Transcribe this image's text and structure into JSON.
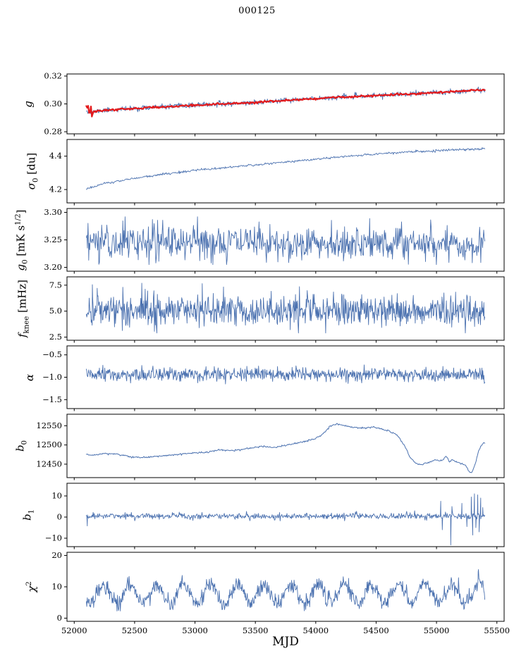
{
  "chart_data": {
    "type": "line",
    "title": "000125",
    "xlabel": "MJD",
    "xlim": [
      51940,
      55560
    ],
    "xticks": [
      52000,
      52500,
      53000,
      53500,
      54000,
      54500,
      55000,
      55500
    ],
    "xtick_labels": [
      "52000",
      "52500",
      "53000",
      "53500",
      "54000",
      "54500",
      "55000",
      "55500"
    ],
    "data_x_range": [
      52100,
      55400
    ],
    "colors": {
      "line": "#4c72b0",
      "overlay": "#e41a1c",
      "axis": "#000000",
      "background": "#ffffff"
    },
    "panels": [
      {
        "id": "g",
        "ylabel": "g",
        "ylabel_html": "<i>g</i>",
        "ylim": [
          0.2785,
          0.3215
        ],
        "yticks": [
          0.28,
          0.3,
          0.32
        ],
        "ytick_labels": [
          "0.28",
          "0.30",
          "0.32"
        ],
        "series": [
          {
            "name": "g-noisy",
            "color": "#4c72b0",
            "width": 0.9,
            "n": 800,
            "seed": 11,
            "noise_std": 0.0009,
            "trend_x": [
              52100,
              52140,
              52200,
              52350,
              52600,
              52900,
              53200,
              53500,
              53800,
              54100,
              54400,
              54700,
              55000,
              55200,
              55400
            ],
            "trend_y": [
              0.2958,
              0.2936,
              0.295,
              0.296,
              0.2972,
              0.2986,
              0.2999,
              0.301,
              0.3028,
              0.3044,
              0.3056,
              0.3068,
              0.308,
              0.3092,
              0.3101
            ]
          },
          {
            "name": "g-smooth-overlay",
            "color": "#e41a1c",
            "width": 2.2,
            "n": 430,
            "seed": 12,
            "noise_std": 0.00035,
            "noise_regions": [
              {
                "from": 52100,
                "to": 52165,
                "std": 0.0019
              }
            ],
            "trend_x": [
              52100,
              52140,
              52200,
              52350,
              52600,
              52900,
              53200,
              53500,
              53800,
              54100,
              54400,
              54700,
              55000,
              55200,
              55400
            ],
            "trend_y": [
              0.2958,
              0.2936,
              0.295,
              0.296,
              0.2972,
              0.2986,
              0.2999,
              0.301,
              0.3028,
              0.3044,
              0.3056,
              0.3068,
              0.308,
              0.3092,
              0.3101
            ]
          }
        ]
      },
      {
        "id": "sigma0",
        "ylabel": "sigma0 [du]",
        "ylabel_html": "<i>σ</i><sub>0</sub> [du]",
        "ylim": [
          4.12,
          4.5
        ],
        "yticks": [
          4.2,
          4.4
        ],
        "ytick_labels": [
          "4.2",
          "4.4"
        ],
        "series": [
          {
            "name": "sigma0",
            "color": "#4c72b0",
            "width": 0.9,
            "n": 620,
            "seed": 21,
            "noise_std": 0.0035,
            "trend_x": [
              52100,
              52250,
              52450,
              52700,
              53000,
              53300,
              53600,
              53900,
              54200,
              54500,
              54800,
              55100,
              55400
            ],
            "trend_y": [
              4.205,
              4.235,
              4.262,
              4.288,
              4.315,
              4.335,
              4.355,
              4.375,
              4.395,
              4.413,
              4.426,
              4.437,
              4.445
            ]
          }
        ]
      },
      {
        "id": "g0",
        "ylabel": "g0 [mK s^(1/2)]",
        "ylabel_html": "<i>g</i><sub>0</sub> [mK s<sup>1/2</sup>]",
        "ylim": [
          3.193,
          3.307
        ],
        "yticks": [
          3.2,
          3.25,
          3.3
        ],
        "ytick_labels": [
          "3.20",
          "3.25",
          "3.30"
        ],
        "series": [
          {
            "name": "g0",
            "color": "#4c72b0",
            "width": 0.9,
            "n": 700,
            "seed": 31,
            "noise_std": 0.016,
            "clip": [
              3.205,
              3.292
            ],
            "spikes": [
              [
                52120,
                3.213
              ],
              [
                52700,
                3.211
              ],
              [
                53080,
                3.214
              ]
            ],
            "trend_x": [
              52100,
              55400
            ],
            "trend_y": [
              3.247,
              3.243
            ]
          }
        ]
      },
      {
        "id": "fknee",
        "ylabel": "fknee [mHz]",
        "ylabel_html": "<i>f</i><sub>knee</sub> [mHz]",
        "ylim": [
          2.2,
          8.3
        ],
        "yticks": [
          2.5,
          5.0,
          7.5
        ],
        "ytick_labels": [
          "2.5",
          "5.0",
          "7.5"
        ],
        "series": [
          {
            "name": "fknee",
            "color": "#4c72b0",
            "width": 0.9,
            "n": 820,
            "seed": 41,
            "noise_std": 0.78,
            "clip": [
              2.9,
              7.9
            ],
            "spikes": [
              [
                52150,
                7.55
              ],
              [
                52190,
                7.2
              ],
              [
                53060,
                7.65
              ]
            ],
            "trend_x": [
              52100,
              55400
            ],
            "trend_y": [
              5.15,
              5.0
            ]
          }
        ]
      },
      {
        "id": "alpha",
        "ylabel": "alpha",
        "ylabel_html": "<i>α</i>",
        "ylim": [
          -1.7,
          -0.3
        ],
        "yticks": [
          -1.5,
          -1.0,
          -0.5
        ],
        "ytick_labels": [
          "−1.5",
          "−1.0",
          "−0.5"
        ],
        "series": [
          {
            "name": "alpha",
            "color": "#4c72b0",
            "width": 0.9,
            "n": 820,
            "seed": 51,
            "noise_std": 0.075,
            "clip": [
              -1.28,
              -0.6
            ],
            "trend_x": [
              52100,
              55400
            ],
            "trend_y": [
              -0.95,
              -0.94
            ]
          }
        ]
      },
      {
        "id": "b0",
        "ylabel": "b0",
        "ylabel_html": "<i>b</i><sub>0</sub>",
        "ylim": [
          12415,
          12580
        ],
        "yticks": [
          12450,
          12500,
          12550
        ],
        "ytick_labels": [
          "12450",
          "12500",
          "12550"
        ],
        "series": [
          {
            "name": "b0",
            "color": "#4c72b0",
            "width": 1.0,
            "n": 600,
            "seed": 61,
            "noise_std": 1.1,
            "trend_x": [
              52100,
              52160,
              52260,
              52360,
              52470,
              52570,
              52700,
              52900,
              53100,
              53200,
              53320,
              53450,
              53550,
              53650,
              53750,
              53850,
              53950,
              54020,
              54070,
              54120,
              54170,
              54230,
              54300,
              54400,
              54480,
              54540,
              54600,
              54660,
              54700,
              54740,
              54780,
              54830,
              54880,
              54930,
              54990,
              55040,
              55080,
              55110,
              55130,
              55160,
              55200,
              55240,
              55270,
              55290,
              55320,
              55350,
              55380,
              55400
            ],
            "trend_y": [
              12476,
              12473,
              12478,
              12476,
              12469,
              12467,
              12471,
              12477,
              12481,
              12487,
              12485,
              12491,
              12496,
              12493,
              12499,
              12505,
              12512,
              12520,
              12532,
              12549,
              12554,
              12551,
              12547,
              12544,
              12546,
              12542,
              12537,
              12528,
              12515,
              12495,
              12468,
              12452,
              12448,
              12454,
              12461,
              12458,
              12471,
              12455,
              12462,
              12457,
              12452,
              12448,
              12430,
              12427,
              12450,
              12485,
              12503,
              12505
            ]
          }
        ]
      },
      {
        "id": "b1",
        "ylabel": "b1",
        "ylabel_html": "<i>b</i><sub>1</sub>",
        "ylim": [
          -14,
          16
        ],
        "yticks": [
          -10,
          0,
          10
        ],
        "ytick_labels": [
          "−10",
          "0",
          "10"
        ],
        "series": [
          {
            "name": "b1",
            "color": "#4c72b0",
            "width": 0.9,
            "n": 700,
            "seed": 71,
            "noise_std": 0.75,
            "clip": [
              -2.5,
              3.2
            ],
            "spikes": [
              [
                52108,
                -4.2
              ],
              [
                55035,
                7.5
              ],
              [
                55048,
                -6
              ],
              [
                55118,
                -13.2
              ],
              [
                55128,
                5
              ],
              [
                55210,
                6.5
              ],
              [
                55252,
                -4.5
              ],
              [
                55288,
                9.5
              ],
              [
                55300,
                -8.5
              ],
              [
                55314,
                11
              ],
              [
                55326,
                -5
              ],
              [
                55341,
                10.5
              ],
              [
                55353,
                -7
              ],
              [
                55366,
                9
              ],
              [
                55383,
                4.5
              ]
            ],
            "trend_x": [
              52100,
              55400
            ],
            "trend_y": [
              0.5,
              0.4
            ]
          }
        ]
      },
      {
        "id": "chi2",
        "ylabel": "chi^2",
        "ylabel_html": "<i>χ</i><sup>2</sup>",
        "ylim": [
          -1,
          21
        ],
        "yticks": [
          0,
          10,
          20
        ],
        "ytick_labels": [
          "0",
          "10",
          "20"
        ],
        "series": [
          {
            "name": "chi2",
            "color": "#4c72b0",
            "width": 0.9,
            "n": 820,
            "seed": 81,
            "noise_std": 1.25,
            "period": 222,
            "amp": 3.1,
            "phase": 52185,
            "clip": [
              2.3,
              15.5
            ],
            "spikes": [
              [
                55345,
                14.8
              ]
            ],
            "trend_x": [
              52100,
              55400
            ],
            "trend_y": [
              7.7,
              8.0
            ]
          }
        ]
      }
    ]
  }
}
